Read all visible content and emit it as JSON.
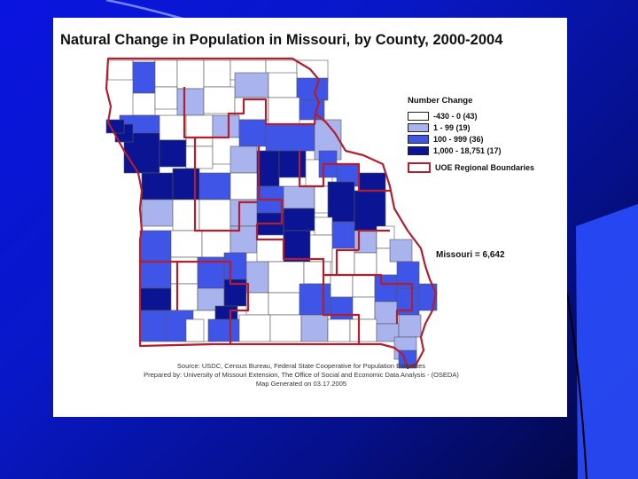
{
  "map": {
    "title": "Natural Change in Population in Missouri, by County, 2000-2004",
    "legend": {
      "title": "Number Change",
      "classes": [
        {
          "label": "-430 - 0 (43)",
          "color": "#ffffff"
        },
        {
          "label": "1 - 99 (19)",
          "color": "#a9b4ef"
        },
        {
          "label": "100 - 999 (36)",
          "color": "#3f55e8"
        },
        {
          "label": "1,000 - 18,751 (17)",
          "color": "#0b1593"
        }
      ],
      "boundary_label": "UOE Regional Boundaries",
      "boundary_color": "#b02030"
    },
    "total": "Missouri = 6,642",
    "source_lines": [
      "Source: USDC, Census Bureau, Federal State Cooperative for Population Estimates",
      "Prepared by: University of Missouri Extension, The Office of Social and Economic Data Analysis - (OSEDA)",
      "Map Generated on 03.17.2005"
    ]
  }
}
